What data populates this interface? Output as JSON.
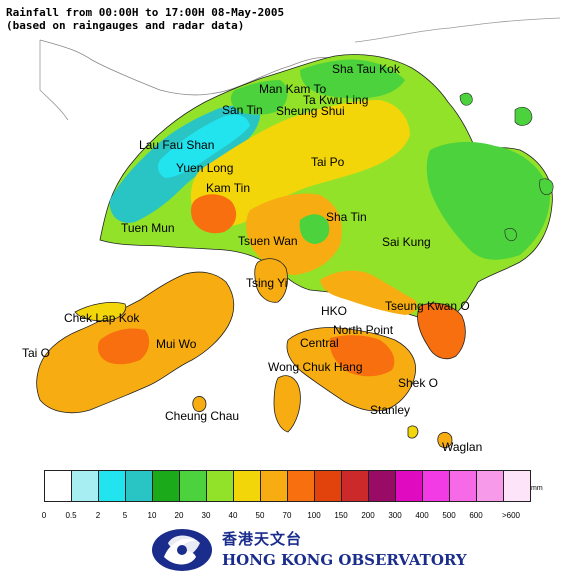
{
  "title": {
    "line1": "Rainfall from 00:00H to 17:00H 08-May-2005",
    "line2": "(based on raingauges and radar data)"
  },
  "places": [
    {
      "name": "Sha Tau Kok"
    },
    {
      "name": "Man Kam To"
    },
    {
      "name": "Ta Kwu Ling"
    },
    {
      "name": "Sheung Shui"
    },
    {
      "name": "San Tin"
    },
    {
      "name": "Lau Fau Shan"
    },
    {
      "name": "Yuen Long"
    },
    {
      "name": "Kam Tin"
    },
    {
      "name": "Tai Po"
    },
    {
      "name": "Sha Tin"
    },
    {
      "name": "Sai Kung"
    },
    {
      "name": "Tuen Mun"
    },
    {
      "name": "Tsuen Wan"
    },
    {
      "name": "Tsing Yi"
    },
    {
      "name": "HKO"
    },
    {
      "name": "Tseung Kwan O"
    },
    {
      "name": "Chek Lap Kok"
    },
    {
      "name": "North Point"
    },
    {
      "name": "Central"
    },
    {
      "name": "Mui Wo"
    },
    {
      "name": "Tai O"
    },
    {
      "name": "Wong Chuk Hang"
    },
    {
      "name": "Shek O"
    },
    {
      "name": "Stanley"
    },
    {
      "name": "Cheung Chau"
    },
    {
      "name": "Waglan"
    }
  ],
  "legend": {
    "unit": "mm",
    "colors": [
      "#ffffff",
      "#a6eef2",
      "#21e4ee",
      "#29c4c4",
      "#1aaa1a",
      "#4cd23c",
      "#93e22a",
      "#f2d60a",
      "#f7ad11",
      "#f76f0e",
      "#e2420b",
      "#cc2a2a",
      "#9a0b66",
      "#e00bc0",
      "#f23be4",
      "#f76ae7",
      "#f79ae9",
      "#fde4f8"
    ],
    "ticks": [
      "0",
      "0.5",
      "2",
      "5",
      "10",
      "20",
      "30",
      "40",
      "50",
      "70",
      "100",
      "150",
      "200",
      "300",
      "400",
      "500",
      "600",
      ">600"
    ]
  },
  "org": {
    "name_cn": "香港天文台",
    "name_en": "HONG KONG OBSERVATORY"
  }
}
